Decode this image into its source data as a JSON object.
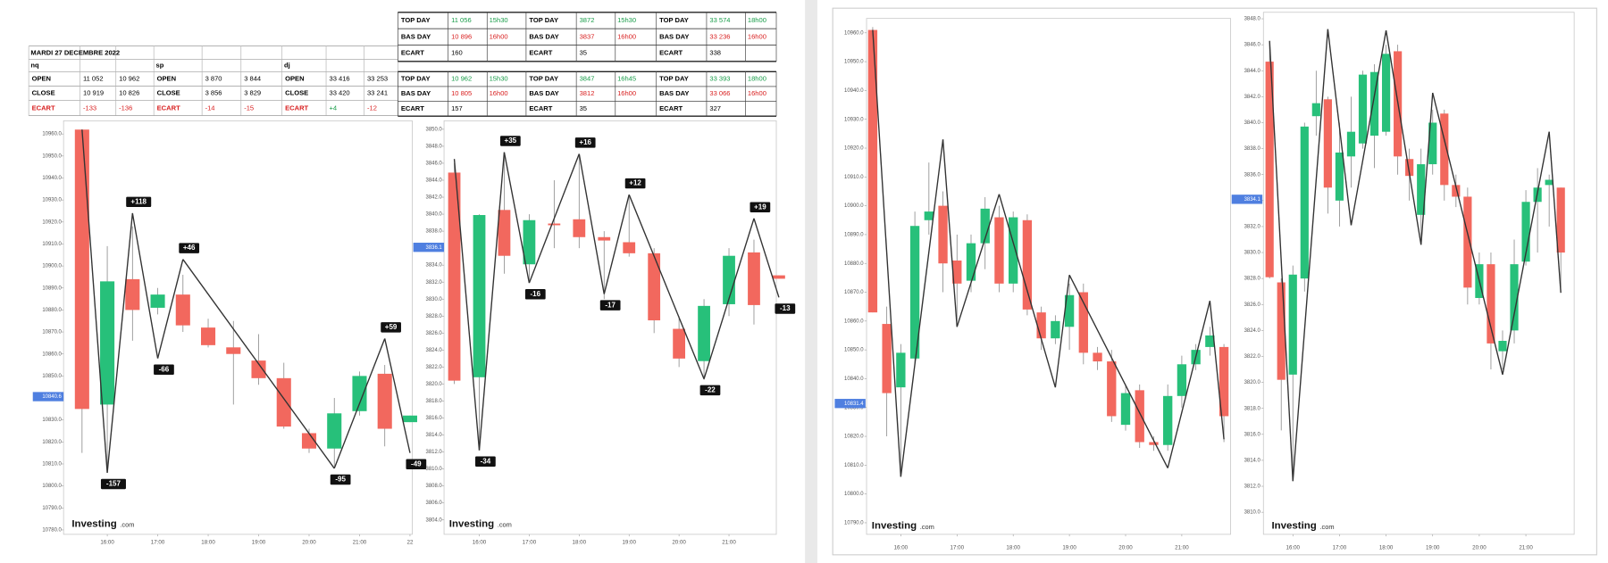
{
  "summary_table": {
    "date": "MARDI 27 DECEMBRE 2022",
    "blocks": [
      {
        "name": "nq",
        "rows": [
          [
            "OPEN",
            "11 052",
            "10 962"
          ],
          [
            "CLOSE",
            "10 919",
            "10 826"
          ],
          [
            "ECART",
            "-133",
            "-136"
          ]
        ]
      },
      {
        "name": "sp",
        "rows": [
          [
            "OPEN",
            "3 870",
            "3 844"
          ],
          [
            "CLOSE",
            "3 856",
            "3 829"
          ],
          [
            "ECART",
            "-14",
            "-15"
          ]
        ]
      },
      {
        "name": "dj",
        "rows": [
          [
            "OPEN",
            "33 416",
            "33 253"
          ],
          [
            "CLOSE",
            "33 420",
            "33 241"
          ],
          [
            "ECART",
            "+4",
            "-12"
          ]
        ]
      }
    ]
  },
  "day_tables": [
    {
      "blocks": [
        {
          "rows": [
            [
              "TOP DAY",
              "11 056",
              "15h30"
            ],
            [
              "BAS DAY",
              "10 896",
              "16h00"
            ],
            [
              "ECART",
              "160"
            ]
          ]
        },
        {
          "rows": [
            [
              "TOP DAY",
              "3872",
              "15h30"
            ],
            [
              "BAS DAY",
              "3837",
              "16h00"
            ],
            [
              "ECART",
              "35"
            ]
          ]
        },
        {
          "rows": [
            [
              "TOP DAY",
              "33 574",
              "18h00"
            ],
            [
              "BAS DAY",
              "33 236",
              "16h00"
            ],
            [
              "ECART",
              "338"
            ]
          ]
        }
      ]
    },
    {
      "blocks": [
        {
          "rows": [
            [
              "TOP DAY",
              "10 962",
              "15h30"
            ],
            [
              "BAS DAY",
              "10 805",
              "16h00"
            ],
            [
              "ECART",
              "157"
            ]
          ]
        },
        {
          "rows": [
            [
              "TOP DAY",
              "3847",
              "16h45"
            ],
            [
              "BAS DAY",
              "3812",
              "16h00"
            ],
            [
              "ECART",
              "35"
            ]
          ]
        },
        {
          "rows": [
            [
              "TOP DAY",
              "33 393",
              "18h00"
            ],
            [
              "BAS DAY",
              "33 066",
              "16h00"
            ],
            [
              "ECART",
              "327"
            ]
          ]
        }
      ]
    }
  ],
  "watermark": {
    "brand": "Investing",
    "suffix": ".com"
  },
  "chart_data": [
    {
      "type": "candlestick",
      "up_color": "#27c07a",
      "down_color": "#f2685e",
      "line_color": "#333333",
      "categories": [
        null,
        "16:00",
        null,
        "17:00",
        null,
        "18:00",
        null,
        "19:00",
        null,
        "20:00",
        null,
        "21:00",
        null,
        "22"
      ],
      "open": [
        10962,
        10837,
        10894,
        10881,
        10887,
        10872,
        10863,
        10857,
        10849,
        10824,
        10817,
        10834,
        10851,
        10829
      ],
      "high": [
        10962,
        10909,
        10918,
        10890,
        10896,
        10876,
        10875,
        10869,
        10856,
        10826,
        10840,
        10852,
        10855,
        10832
      ],
      "low": [
        10815,
        10809,
        10866,
        10878,
        10870,
        10863,
        10837,
        10846,
        10826,
        10815,
        10809,
        10832,
        10818,
        10829
      ],
      "close": [
        10835,
        10893,
        10880,
        10887,
        10873,
        10864,
        10860,
        10849,
        10827,
        10817,
        10833,
        10850,
        10826,
        10832
      ],
      "zigzag": {
        "values": [
          10962,
          10806,
          10924,
          10858,
          10903,
          null,
          null,
          null,
          null,
          null,
          10808,
          null,
          10867,
          10815
        ],
        "labels": [
          null,
          "-157",
          "+118",
          "-66",
          "+46",
          null,
          null,
          null,
          null,
          null,
          "-95",
          null,
          "+59",
          "-49"
        ]
      },
      "last_price": 10840.6,
      "ylim": [
        10778,
        10966
      ],
      "yticks": [
        {
          "value": 10960,
          "label": "10960.0"
        },
        {
          "value": 10950,
          "label": "10950.0"
        },
        {
          "value": 10940,
          "label": "10940.0"
        },
        {
          "value": 10930,
          "label": "10930.0"
        },
        {
          "value": 10920,
          "label": "10920.0"
        },
        {
          "value": 10910,
          "label": "10910.0"
        },
        {
          "value": 10900,
          "label": "10900.0"
        },
        {
          "value": 10890,
          "label": "10890.0"
        },
        {
          "value": 10880,
          "label": "10880.0"
        },
        {
          "value": 10870,
          "label": "10870.0"
        },
        {
          "value": 10860,
          "label": "10860.0"
        },
        {
          "value": 10850,
          "label": "10850.0"
        },
        {
          "value": 10840,
          "label": "10840.0"
        },
        {
          "value": 10830,
          "label": "10830.0"
        },
        {
          "value": 10820,
          "label": "10820.0"
        },
        {
          "value": 10810,
          "label": "10810.0"
        },
        {
          "value": 10800,
          "label": "10800.0"
        },
        {
          "value": 10790,
          "label": "10790.0"
        },
        {
          "value": 10780,
          "label": "10780.0"
        }
      ]
    },
    {
      "type": "candlestick",
      "up_color": "#27c07a",
      "down_color": "#f2685e",
      "line_color": "#333333",
      "categories": [
        null,
        "16:00",
        null,
        "17:00",
        null,
        "18:00",
        null,
        "19:00",
        null,
        "20:00",
        null,
        "21:00",
        null,
        null
      ],
      "open": [
        3844.9,
        3820.8,
        3840.5,
        3834.1,
        3838.9,
        3839.4,
        3837.3,
        3836.7,
        3835.4,
        3826.5,
        3822.7,
        3829.4,
        3835.5,
        3832.8
      ],
      "high": [
        3846,
        3840,
        3847,
        3840,
        3844,
        3847,
        3838,
        3842,
        3836,
        3828,
        3830,
        3836,
        3837,
        3832.8
      ],
      "low": [
        3820,
        3812.5,
        3833,
        3832,
        3836,
        3836,
        3830,
        3835,
        3826,
        3822,
        3820.5,
        3828,
        3827,
        3832.4
      ],
      "close": [
        3820.4,
        3839.9,
        3835.1,
        3839.3,
        3838.7,
        3837.3,
        3836.9,
        3835.4,
        3827.5,
        3823,
        3829.2,
        3835.1,
        3829.3,
        3832.4
      ],
      "zigzag": {
        "values": [
          3846.5,
          3812.2,
          3847.3,
          3831.9,
          null,
          3847.1,
          3830.6,
          3842.3,
          null,
          null,
          3820.6,
          null,
          3839.5,
          3830.2
        ],
        "labels": [
          null,
          "-34",
          "+35",
          "-16",
          null,
          "+16",
          "-17",
          "+12",
          null,
          null,
          "-22",
          null,
          "+19",
          "-13"
        ]
      },
      "last_price": 3836.1,
      "ylim": [
        3802.3,
        3851
      ],
      "yticks": [
        {
          "value": 3850,
          "label": "3850.0"
        },
        {
          "value": 3848,
          "label": "3848.0"
        },
        {
          "value": 3846,
          "label": "3846.0"
        },
        {
          "value": 3844,
          "label": "3844.0"
        },
        {
          "value": 3842,
          "label": "3842.0"
        },
        {
          "value": 3840,
          "label": "3840.0"
        },
        {
          "value": 3838,
          "label": "3838.0"
        },
        {
          "value": 3836,
          "label": "3836.0"
        },
        {
          "value": 3834,
          "label": "3834.0"
        },
        {
          "value": 3832,
          "label": "3832.0"
        },
        {
          "value": 3830,
          "label": "3830.0"
        },
        {
          "value": 3828,
          "label": "3828.0"
        },
        {
          "value": 3826,
          "label": "3826.0"
        },
        {
          "value": 3824,
          "label": "3824.0"
        },
        {
          "value": 3822,
          "label": "3822.0"
        },
        {
          "value": 3820,
          "label": "3820.0"
        },
        {
          "value": 3818,
          "label": "3818.0"
        },
        {
          "value": 3816,
          "label": "3816.0"
        },
        {
          "value": 3814,
          "label": "3814.0"
        },
        {
          "value": 3812,
          "label": "3812.0"
        },
        {
          "value": 3810,
          "label": "3810.0"
        },
        {
          "value": 3808,
          "label": "3808.0"
        },
        {
          "value": 3806,
          "label": "3806.0"
        },
        {
          "value": 3804,
          "label": "3804.0"
        }
      ]
    },
    {
      "type": "candlestick",
      "up_color": "#27c07a",
      "down_color": "#f2685e",
      "line_color": "#333333",
      "categories": [
        null,
        null,
        "16:00",
        null,
        null,
        null,
        "17:00",
        null,
        null,
        null,
        "18:00",
        null,
        null,
        null,
        "19:00",
        null,
        null,
        null,
        "20:00",
        null,
        null,
        null,
        "21:00",
        null,
        null,
        null
      ],
      "open": [
        10961,
        10859,
        10837,
        10847,
        10895,
        10900,
        10881,
        10874,
        10887,
        10896,
        10873,
        10895,
        10863,
        10854,
        10858,
        10870,
        10849,
        10846,
        10824,
        10836,
        10818,
        10817,
        10834,
        10845,
        10851,
        10851
      ],
      "high": [
        10962,
        10865,
        10852,
        10898,
        10915,
        10905,
        10890,
        10890,
        10903,
        10900,
        10898,
        10897,
        10865,
        10862,
        10873,
        10873,
        10851,
        10850,
        10838,
        10838,
        10820,
        10838,
        10848,
        10852,
        10858,
        10852
      ],
      "low": [
        10863,
        10820,
        10806,
        10845,
        10890,
        10870,
        10860,
        10870,
        10878,
        10870,
        10870,
        10862,
        10850,
        10852,
        10850,
        10845,
        10843,
        10825,
        10822,
        10816,
        10815,
        10815,
        10830,
        10843,
        10848,
        10818
      ],
      "close": [
        10863,
        10835,
        10849,
        10893,
        10898,
        10880,
        10873,
        10887,
        10899,
        10873,
        10896,
        10864,
        10854,
        10860,
        10869,
        10849,
        10846,
        10827,
        10835,
        10818,
        10817,
        10834,
        10845,
        10850,
        10855,
        10827
      ],
      "zigzag": {
        "values": [
          10961,
          null,
          10806,
          null,
          null,
          10923,
          10858,
          null,
          null,
          10904,
          null,
          null,
          null,
          10837,
          10876,
          null,
          null,
          null,
          null,
          null,
          null,
          10809,
          null,
          null,
          10867,
          10819
        ],
        "labels": [
          null,
          null,
          null,
          null,
          null,
          null,
          null,
          null,
          null,
          null,
          null,
          null,
          null,
          null,
          null,
          null,
          null,
          null,
          null,
          null,
          null,
          null,
          null,
          null,
          null,
          null
        ]
      },
      "last_price": 10831.4,
      "ylim": [
        10786,
        10965
      ],
      "yticks": [
        {
          "value": 10960,
          "label": "10960.0"
        },
        {
          "value": 10950,
          "label": "10950.0"
        },
        {
          "value": 10940,
          "label": "10940.0"
        },
        {
          "value": 10930,
          "label": "10930.0"
        },
        {
          "value": 10920,
          "label": "10920.0"
        },
        {
          "value": 10910,
          "label": "10910.0"
        },
        {
          "value": 10900,
          "label": "10900.0"
        },
        {
          "value": 10890,
          "label": "10890.0"
        },
        {
          "value": 10880,
          "label": "10880.0"
        },
        {
          "value": 10870,
          "label": "10870.0"
        },
        {
          "value": 10860,
          "label": "10860.0"
        },
        {
          "value": 10850,
          "label": "10850.0"
        },
        {
          "value": 10840,
          "label": "10840.0"
        },
        {
          "value": 10830,
          "label": "10830.0"
        },
        {
          "value": 10820,
          "label": "10820.0"
        },
        {
          "value": 10810,
          "label": "10810.0"
        },
        {
          "value": 10800,
          "label": "10800.0"
        },
        {
          "value": 10790,
          "label": "10790.0"
        }
      ]
    },
    {
      "type": "candlestick",
      "up_color": "#27c07a",
      "down_color": "#f2685e",
      "line_color": "#333333",
      "categories": [
        null,
        null,
        "16:00",
        null,
        null,
        null,
        "17:00",
        null,
        null,
        null,
        "18:00",
        null,
        null,
        null,
        "19:00",
        null,
        null,
        null,
        "20:00",
        null,
        null,
        null,
        "21:00",
        null,
        null,
        null
      ],
      "open": [
        3844.7,
        3827.7,
        3820.6,
        3828,
        3840.5,
        3841.8,
        3834,
        3837.4,
        3838.4,
        3839,
        3839.3,
        3845.5,
        3837.2,
        3832.9,
        3836.8,
        3840.7,
        3835.2,
        3834.3,
        3826.5,
        3829.1,
        3822.4,
        3824,
        3829.3,
        3833.9,
        3835.2,
        3835
      ],
      "high": [
        3846.3,
        3828,
        3829,
        3840,
        3844,
        3842,
        3840,
        3842,
        3844,
        3844.5,
        3846,
        3846,
        3838,
        3838,
        3841,
        3841,
        3836,
        3835,
        3830,
        3830,
        3824,
        3831,
        3834.8,
        3836.5,
        3836,
        3835
      ],
      "low": [
        3828,
        3816.3,
        3812.4,
        3827,
        3839,
        3833,
        3832,
        3835,
        3838,
        3836.5,
        3839,
        3836,
        3834,
        3831,
        3836,
        3834,
        3833.5,
        3826,
        3826,
        3821,
        3821,
        3823,
        3829,
        3830,
        3832,
        3827
      ],
      "close": [
        3828.1,
        3820.2,
        3828.3,
        3839.7,
        3841.5,
        3835,
        3837.7,
        3839.3,
        3843.7,
        3843.9,
        3845.3,
        3837.4,
        3835.9,
        3836.8,
        3840,
        3835.2,
        3834.3,
        3827.3,
        3829.1,
        3823,
        3823.2,
        3829.1,
        3833.9,
        3835,
        3835.6,
        3830
      ],
      "zigzag": {
        "values": [
          3846.3,
          null,
          3812.4,
          null,
          null,
          3847.2,
          null,
          3832.1,
          null,
          null,
          3847.1,
          null,
          null,
          3830.6,
          3842.3,
          null,
          null,
          null,
          null,
          null,
          3820.6,
          null,
          null,
          null,
          3839.3,
          3826.9
        ],
        "labels": [
          null,
          null,
          null,
          null,
          null,
          null,
          null,
          null,
          null,
          null,
          null,
          null,
          null,
          null,
          null,
          null,
          null,
          null,
          null,
          null,
          null,
          null,
          null,
          null,
          null,
          null
        ]
      },
      "last_price": 3834.1,
      "ylim": [
        3808.3,
        3848.5
      ],
      "yticks": [
        {
          "value": 3848,
          "label": "3848.0"
        },
        {
          "value": 3846,
          "label": "3846.0"
        },
        {
          "value": 3844,
          "label": "3844.0"
        },
        {
          "value": 3842,
          "label": "3842.0"
        },
        {
          "value": 3840,
          "label": "3840.0"
        },
        {
          "value": 3838,
          "label": "3838.0"
        },
        {
          "value": 3836,
          "label": "3836.0"
        },
        {
          "value": 3834,
          "label": "3834.0"
        },
        {
          "value": 3832,
          "label": "3832.0"
        },
        {
          "value": 3830,
          "label": "3830.0"
        },
        {
          "value": 3828,
          "label": "3828.0"
        },
        {
          "value": 3826,
          "label": "3826.0"
        },
        {
          "value": 3824,
          "label": "3824.0"
        },
        {
          "value": 3822,
          "label": "3822.0"
        },
        {
          "value": 3820,
          "label": "3820.0"
        },
        {
          "value": 3818,
          "label": "3818.0"
        },
        {
          "value": 3816,
          "label": "3816.0"
        },
        {
          "value": 3814,
          "label": "3814.0"
        },
        {
          "value": 3812,
          "label": "3812.0"
        },
        {
          "value": 3810,
          "label": "3810.0"
        }
      ]
    }
  ]
}
